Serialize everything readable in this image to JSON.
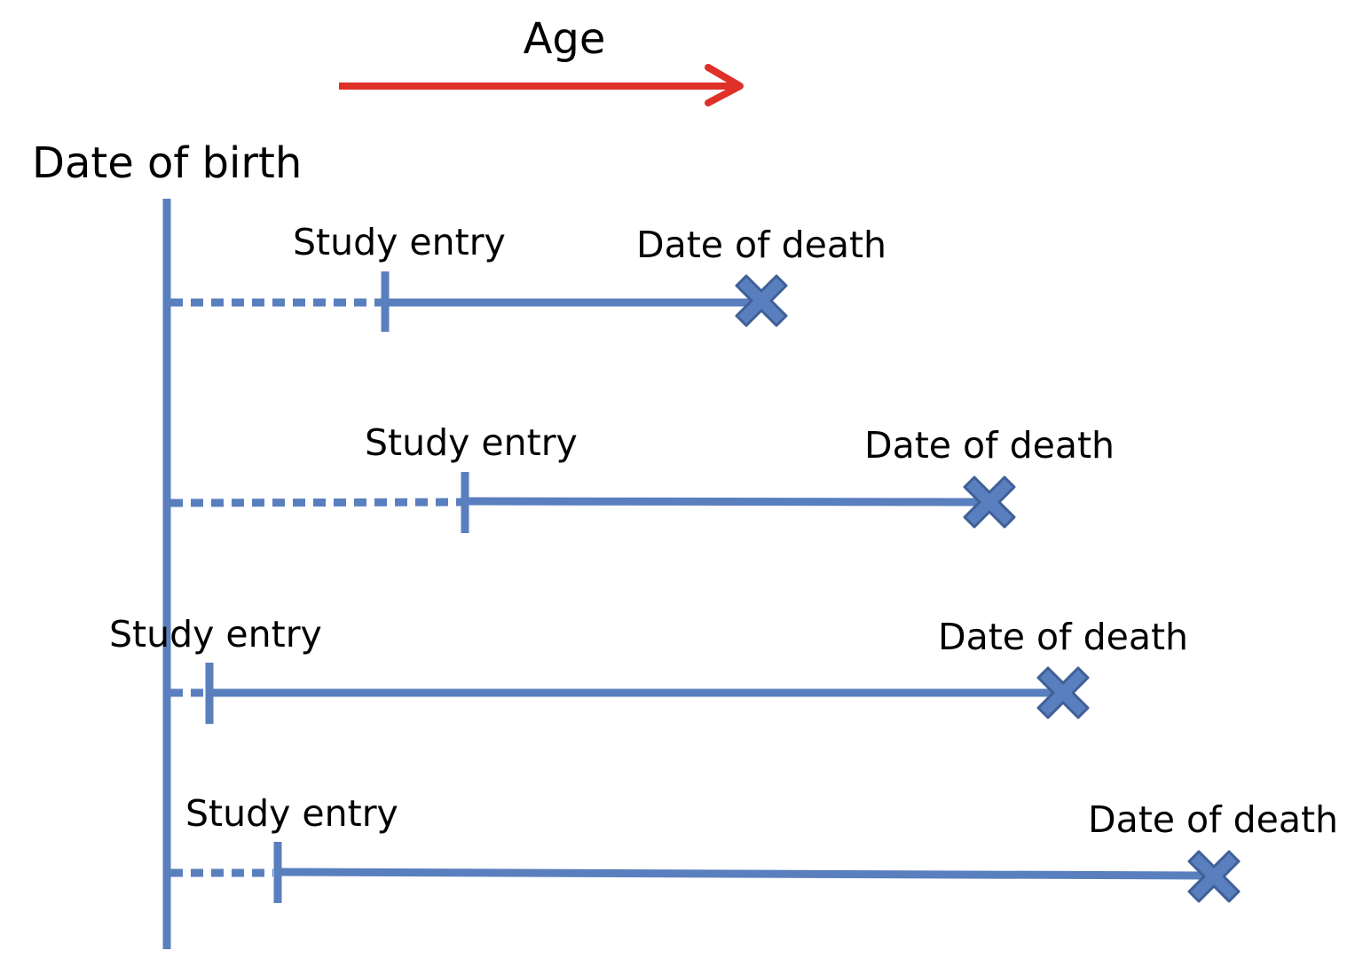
{
  "diagram": {
    "age_label": "Age",
    "birth_label": "Date of birth",
    "colors": {
      "arrow": "#e0302a",
      "line": "#5a7fbe",
      "cross_fill": "#5a7fbe",
      "cross_stroke": "#3f5f97",
      "text": "#000000"
    },
    "rows": [
      {
        "entry_label": "Study entry",
        "death_label": "Date of death"
      },
      {
        "entry_label": "Study entry",
        "death_label": "Date of death"
      },
      {
        "entry_label": "Study entry",
        "death_label": "Date of death"
      },
      {
        "entry_label": "Study entry",
        "death_label": "Date of death"
      }
    ]
  }
}
